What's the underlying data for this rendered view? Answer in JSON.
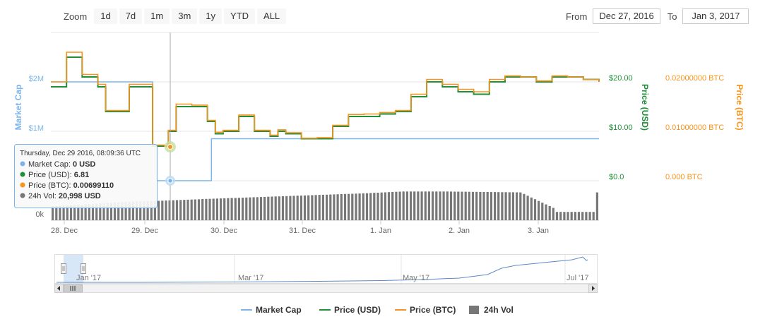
{
  "toolbar": {
    "zoom_label": "Zoom",
    "buttons": [
      "1d",
      "7d",
      "1m",
      "3m",
      "1y",
      "YTD",
      "ALL"
    ],
    "from_label": "From",
    "from_value": "Dec 27, 2016",
    "to_label": "To",
    "to_value": "Jan 3, 2017"
  },
  "colors": {
    "market_cap": "#7cb5ec",
    "price_usd": "#1f8f3a",
    "price_btc": "#f7931a",
    "volume": "#777777"
  },
  "tooltip": {
    "header": "Thursday, Dec 29 2016, 08:09:36 UTC",
    "rows": [
      {
        "label": "Market Cap: ",
        "value": "0 USD",
        "color": "#7cb5ec"
      },
      {
        "label": "Price (USD): ",
        "value": "6.81",
        "color": "#1f8f3a"
      },
      {
        "label": "Price (BTC): ",
        "value": "0.00699110",
        "color": "#f7931a"
      },
      {
        "label": "24h Vol: ",
        "value": "20,998 USD",
        "color": "#777777"
      }
    ]
  },
  "navigator": {
    "labels": [
      "Jan '17",
      "Mar '17",
      "May '17",
      "Jul '17"
    ]
  },
  "chart_data": {
    "type": "line",
    "x_range": [
      "2016-12-27T19:00",
      "2017-01-03T19:00"
    ],
    "x_ticks": [
      "28. Dec",
      "29. Dec",
      "30. Dec",
      "31. Dec",
      "1. Jan",
      "2. Jan",
      "3. Jan"
    ],
    "axes": {
      "market_cap": {
        "label": "Market Cap",
        "ticks": [
          "$1M",
          "$2M"
        ]
      },
      "price_usd": {
        "label": "Price (USD)",
        "ticks": [
          "$0.0",
          "$10.00",
          "$20.00"
        ],
        "range": [
          0,
          20
        ]
      },
      "price_btc": {
        "label": "Price (BTC)",
        "ticks": [
          "0.000 BTC",
          "0.01000000 BTC",
          "0.02000000 BTC"
        ],
        "range": [
          0,
          0.02
        ]
      },
      "volume": {
        "label": "24h Vol",
        "ticks": [
          "0k"
        ]
      }
    },
    "series": [
      {
        "name": "Price (USD)",
        "x": [
          0,
          0.2,
          0.4,
          0.6,
          0.7,
          0.8,
          1.0,
          1.1,
          1.3,
          1.45,
          1.5,
          1.6,
          1.8,
          2.0,
          2.1,
          2.2,
          2.4,
          2.6,
          2.8,
          2.9,
          3.0,
          3.2,
          3.4,
          3.6,
          3.8,
          4.0,
          4.2,
          4.4,
          4.6,
          4.8,
          5.0,
          5.2,
          5.4,
          5.6,
          5.8,
          6.0,
          6.2,
          6.4,
          6.6,
          6.8,
          7.0
        ],
        "values": [
          19,
          25,
          21,
          19,
          14,
          14,
          19,
          19,
          7,
          7,
          10,
          15,
          15,
          12,
          9.5,
          10,
          13,
          10,
          9,
          10,
          9.5,
          8.5,
          8.5,
          11,
          13,
          13,
          13.5,
          14,
          17,
          20,
          19,
          18,
          17.5,
          20,
          21,
          21,
          20,
          21,
          21,
          20.5,
          20
        ]
      },
      {
        "name": "Price (BTC)",
        "x": [
          0,
          0.2,
          0.4,
          0.6,
          0.7,
          0.8,
          1.0,
          1.1,
          1.3,
          1.45,
          1.5,
          1.6,
          1.8,
          2.0,
          2.1,
          2.2,
          2.4,
          2.6,
          2.8,
          2.9,
          3.0,
          3.2,
          3.4,
          3.6,
          3.8,
          4.0,
          4.2,
          4.4,
          4.6,
          4.8,
          5.0,
          5.2,
          5.4,
          5.6,
          5.8,
          6.0,
          6.2,
          6.4,
          6.6,
          6.8,
          7.0
        ],
        "values": [
          0.02,
          0.026,
          0.0215,
          0.0195,
          0.0142,
          0.0142,
          0.0195,
          0.0195,
          0.0072,
          0.007,
          0.0102,
          0.0155,
          0.0153,
          0.0122,
          0.0098,
          0.0102,
          0.0133,
          0.0102,
          0.0092,
          0.0103,
          0.0097,
          0.0086,
          0.0087,
          0.0112,
          0.0134,
          0.0135,
          0.0138,
          0.0142,
          0.0175,
          0.0205,
          0.0195,
          0.0185,
          0.018,
          0.0205,
          0.0212,
          0.021,
          0.0202,
          0.0212,
          0.021,
          0.0205,
          0.02
        ]
      },
      {
        "name": "Market Cap",
        "x": [
          0,
          1.0,
          1.3,
          1.35,
          2.0,
          2.05,
          7.0
        ],
        "values": [
          2000000,
          2000000,
          700000,
          0,
          0,
          850000,
          850000
        ]
      },
      {
        "name": "24h Vol",
        "x": [
          0,
          1.0,
          1.4,
          2.0,
          3.0,
          4.0,
          4.5,
          5.0,
          6.0,
          6.5,
          7.0
        ],
        "values": [
          15000,
          20000,
          21000,
          23000,
          26000,
          29000,
          31000,
          31000,
          30000,
          10000,
          30000
        ]
      }
    ],
    "legend": {
      "position": "bottom",
      "items": [
        "Market Cap",
        "Price (USD)",
        "Price (BTC)",
        "24h Vol"
      ]
    }
  }
}
